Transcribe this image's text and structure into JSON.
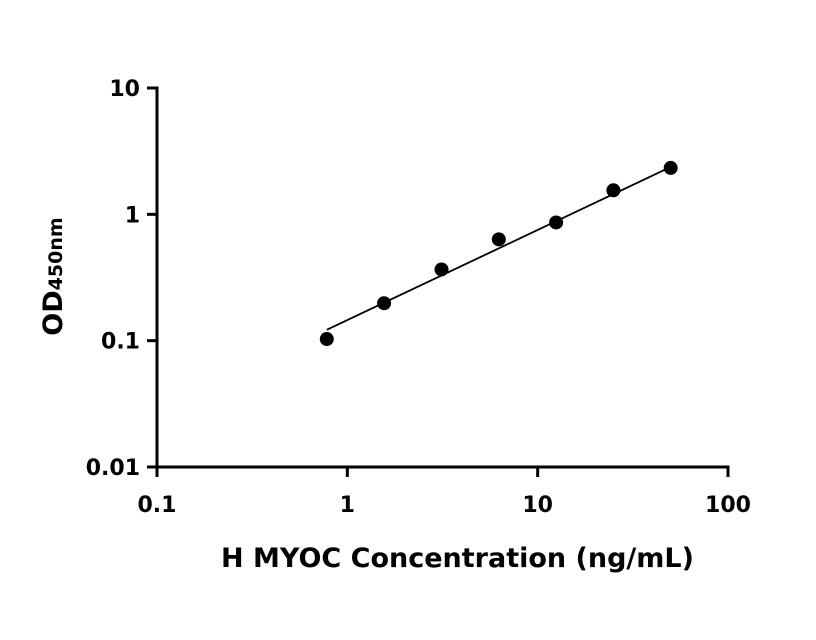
{
  "chart_data": {
    "type": "scatter",
    "title": "",
    "xlabel": "H MYOC Concentration (ng/mL)",
    "ylabel_main": "OD",
    "ylabel_sub": "450nm",
    "x_scale": "log",
    "y_scale": "log",
    "xlim": [
      0.1,
      100
    ],
    "ylim": [
      0.01,
      10
    ],
    "x_ticks": [
      {
        "value": 0.1,
        "label": "0.1"
      },
      {
        "value": 1,
        "label": "1"
      },
      {
        "value": 10,
        "label": "10"
      },
      {
        "value": 100,
        "label": "100"
      }
    ],
    "y_ticks": [
      {
        "value": 0.01,
        "label": "0.01"
      },
      {
        "value": 0.1,
        "label": "0.1"
      },
      {
        "value": 1,
        "label": "1"
      },
      {
        "value": 10,
        "label": "10"
      }
    ],
    "grid": false,
    "legend": "none",
    "series": [
      {
        "x": [
          0.78,
          1.56,
          3.125,
          6.25,
          12.5,
          25,
          50
        ],
        "y": [
          0.103,
          0.198,
          0.366,
          0.634,
          0.862,
          1.55,
          2.33
        ],
        "color": "#000000"
      }
    ],
    "fit_line": {
      "x": [
        0.78,
        50
      ],
      "y": [
        0.122,
        2.37
      ],
      "color": "#000000"
    }
  }
}
